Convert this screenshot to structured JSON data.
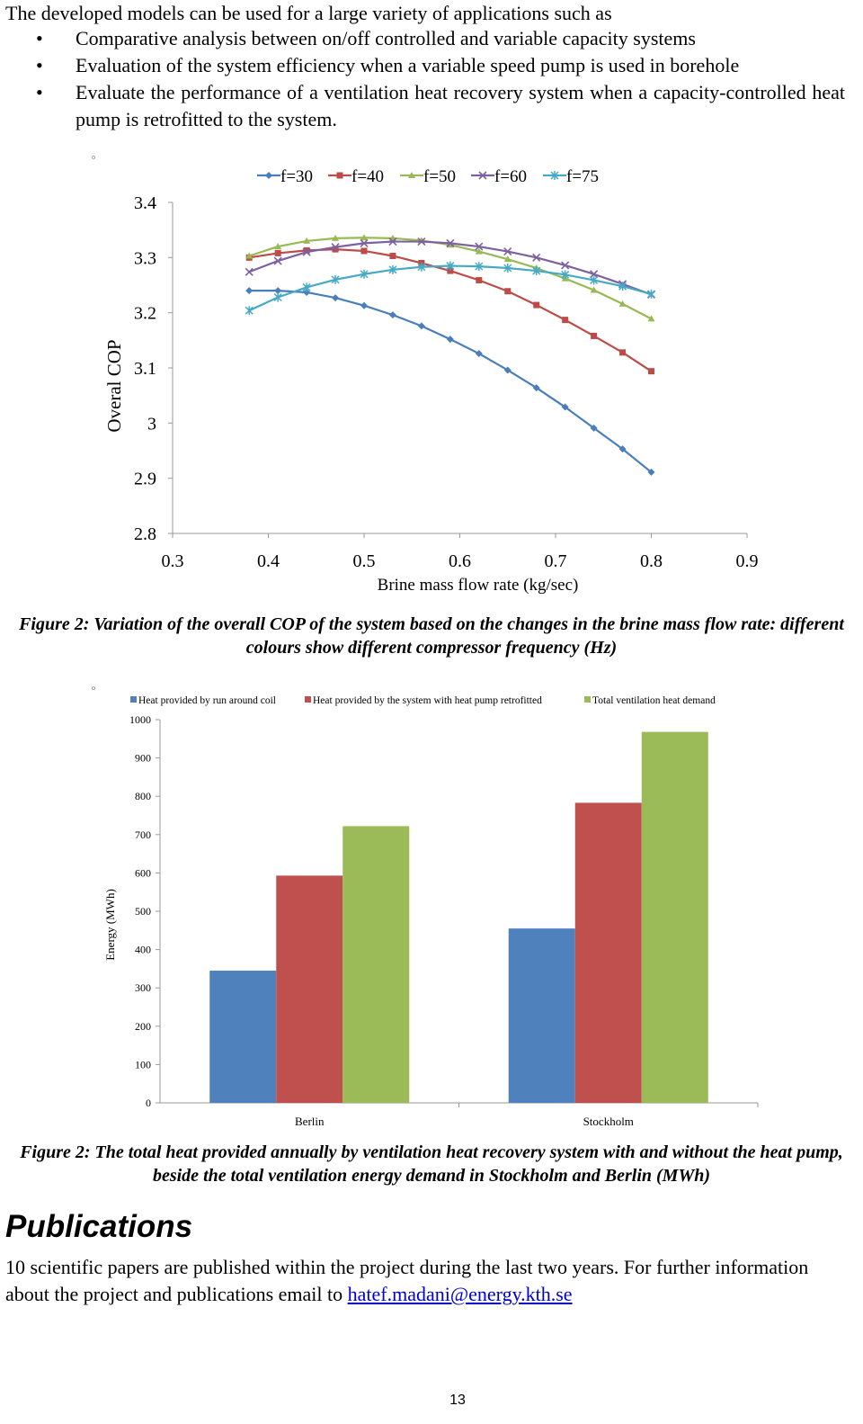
{
  "intro": {
    "text": "The developed models can be used for a large variety of applications such as",
    "bullets": [
      "Comparative analysis between on/off controlled and variable capacity systems",
      "Evaluation of the system efficiency when a variable speed pump is used in borehole",
      "Evaluate the performance of a ventilation heat recovery system when a capacity-controlled heat pump is retrofitted to the system."
    ]
  },
  "chart_data": [
    {
      "type": "line",
      "ylabel": "Overal COP",
      "xlabel": "Brine mass flow rate (kg/sec)",
      "xlim": [
        0.3,
        0.9
      ],
      "ylim": [
        2.8,
        3.4
      ],
      "x_ticks": [
        "0.3",
        "0.4",
        "0.5",
        "0.6",
        "0.7",
        "0.8",
        "0.9"
      ],
      "y_ticks": [
        "3.4",
        "3.3",
        "3.2",
        "3.1",
        "3",
        "2.9",
        "2.8"
      ],
      "grid": false,
      "legend_position": "top",
      "x": [
        0.38,
        0.41,
        0.44,
        0.47,
        0.5,
        0.53,
        0.56,
        0.59,
        0.62,
        0.65,
        0.68,
        0.71,
        0.74,
        0.77,
        0.8
      ],
      "series": [
        {
          "name": "f=30",
          "color": "#4a7ebb",
          "marker": "diamond",
          "values": [
            3.24,
            3.24,
            3.237,
            3.227,
            3.213,
            3.196,
            3.176,
            3.152,
            3.126,
            3.096,
            3.064,
            3.029,
            2.991,
            2.953,
            2.911
          ]
        },
        {
          "name": "f=40",
          "color": "#be4b48",
          "marker": "square",
          "values": [
            3.3,
            3.308,
            3.313,
            3.315,
            3.312,
            3.303,
            3.29,
            3.276,
            3.259,
            3.239,
            3.214,
            3.187,
            3.158,
            3.128,
            3.094
          ]
        },
        {
          "name": "f=50",
          "color": "#98b954",
          "marker": "triangle",
          "values": [
            3.303,
            3.32,
            3.33,
            3.335,
            3.336,
            3.335,
            3.331,
            3.323,
            3.311,
            3.297,
            3.281,
            3.262,
            3.241,
            3.216,
            3.189
          ]
        },
        {
          "name": "f=60",
          "color": "#7d60a0",
          "marker": "x",
          "values": [
            3.274,
            3.294,
            3.31,
            3.319,
            3.326,
            3.329,
            3.329,
            3.326,
            3.32,
            3.311,
            3.3,
            3.286,
            3.27,
            3.252,
            3.233
          ]
        },
        {
          "name": "f=75",
          "color": "#46aac5",
          "marker": "star",
          "values": [
            3.204,
            3.228,
            3.246,
            3.26,
            3.27,
            3.278,
            3.283,
            3.285,
            3.284,
            3.281,
            3.276,
            3.269,
            3.259,
            3.248,
            3.234
          ]
        }
      ]
    },
    {
      "type": "bar",
      "ylabel": "Energy (MWh)",
      "categories": [
        "Berlin",
        "Stockholm"
      ],
      "ylim": [
        0,
        1000
      ],
      "y_ticks": [
        "0",
        "100",
        "200",
        "300",
        "400",
        "500",
        "600",
        "700",
        "800",
        "900",
        "1000"
      ],
      "grid": false,
      "legend_position": "top",
      "series": [
        {
          "name": "Heat provided by run around coil",
          "color": "#4f81bd",
          "values": [
            345,
            455
          ]
        },
        {
          "name": "Heat provided by the system with heat pump retrofitted",
          "color": "#c0504d",
          "values": [
            593,
            783
          ]
        },
        {
          "name": "Total ventilation heat demand",
          "color": "#9bbb59",
          "values": [
            722,
            968
          ]
        }
      ]
    }
  ],
  "captions": {
    "figure1": "Figure 2: Variation of the overall COP of the system based on the changes in the brine mass flow rate: different colours show different compressor frequency (Hz)",
    "figure2": "Figure 2: The total heat provided annually by ventilation heat recovery system with and without the heat pump, beside the total ventilation energy demand in Stockholm and Berlin (MWh)"
  },
  "publications": {
    "heading": "Publications",
    "text": "10 scientific papers are published within the project during the last two years. For further information about the project and publications email to",
    "email": "hatef.madani@energy.kth.se"
  },
  "page_number": "13"
}
